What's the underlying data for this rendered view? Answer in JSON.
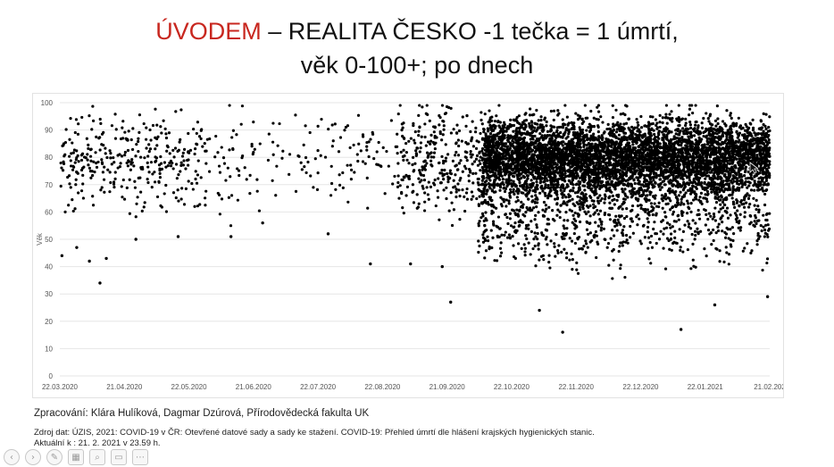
{
  "slide": {
    "title_accent": "ÚVODEM",
    "title_rest": " – REALITA ČESKO -1 tečka = 1 úmrtí,",
    "title_line2": "věk 0-100+; po dnech",
    "credit": "Zpracování: Klára Hulíková, Dagmar Dzúrová, Přírodovědecká fakulta UK",
    "source_line1": "Zdroj dat: ÚZIS, 2021: COVID-19 v ČR: Otevřené datové sady a sady ke stažení. COVID-19: Přehled úmrtí dle hlášení krajských hygienických stanic.",
    "source_line2": "Aktuální k : 21. 2. 2021 v 23.59 h."
  },
  "colors": {
    "accent": "#c8271f",
    "dots": "#000000",
    "gridline": "#e6e6e6"
  },
  "toolbar": {
    "buttons": [
      {
        "name": "previous-slide-icon",
        "glyph": "‹"
      },
      {
        "name": "next-slide-icon",
        "glyph": "›"
      },
      {
        "name": "pen-icon",
        "glyph": "✎"
      },
      {
        "name": "slides-grid-icon",
        "glyph": "▦"
      },
      {
        "name": "zoom-icon",
        "glyph": "⌕"
      },
      {
        "name": "subtitles-icon",
        "glyph": "▭"
      },
      {
        "name": "more-options-icon",
        "glyph": "⋯"
      }
    ]
  },
  "chart_data": {
    "type": "scatter",
    "title": "",
    "xlabel": "",
    "ylabel": "Věk",
    "ylim": [
      0,
      100
    ],
    "yticks": [
      0,
      10,
      20,
      30,
      40,
      50,
      60,
      70,
      80,
      90,
      100
    ],
    "xlim": [
      "2020-03-22",
      "2021-02-21"
    ],
    "xtick_labels": [
      "22.03.2020",
      "21.04.2020",
      "22.05.2020",
      "21.06.2020",
      "22.07.2020",
      "22.08.2020",
      "21.09.2020",
      "22.10.2020",
      "22.11.2020",
      "22.12.2020",
      "22.01.2021",
      "21.02.202"
    ],
    "grid": "horizontal",
    "legend": "none",
    "series_description_points": [
      {
        "x": "2020-03-23",
        "y": 44
      },
      {
        "x": "2020-03-30",
        "y": 47
      },
      {
        "x": "2020-04-05",
        "y": 42
      },
      {
        "x": "2020-04-10",
        "y": 34
      },
      {
        "x": "2020-04-13",
        "y": 43
      },
      {
        "x": "2020-04-27",
        "y": 50
      },
      {
        "x": "2020-05-17",
        "y": 51
      },
      {
        "x": "2020-06-11",
        "y": 51
      },
      {
        "x": "2020-06-26",
        "y": 56
      },
      {
        "x": "2020-07-27",
        "y": 52
      },
      {
        "x": "2020-08-16",
        "y": 41
      },
      {
        "x": "2020-09-04",
        "y": 41
      },
      {
        "x": "2020-09-19",
        "y": 40
      },
      {
        "x": "2020-09-23",
        "y": 27
      },
      {
        "x": "2020-11-04",
        "y": 24
      },
      {
        "x": "2020-11-15",
        "y": 16
      },
      {
        "x": "2021-01-10",
        "y": 17
      },
      {
        "x": "2021-01-26",
        "y": 26
      },
      {
        "x": "2021-02-20",
        "y": 29
      }
    ]
  }
}
